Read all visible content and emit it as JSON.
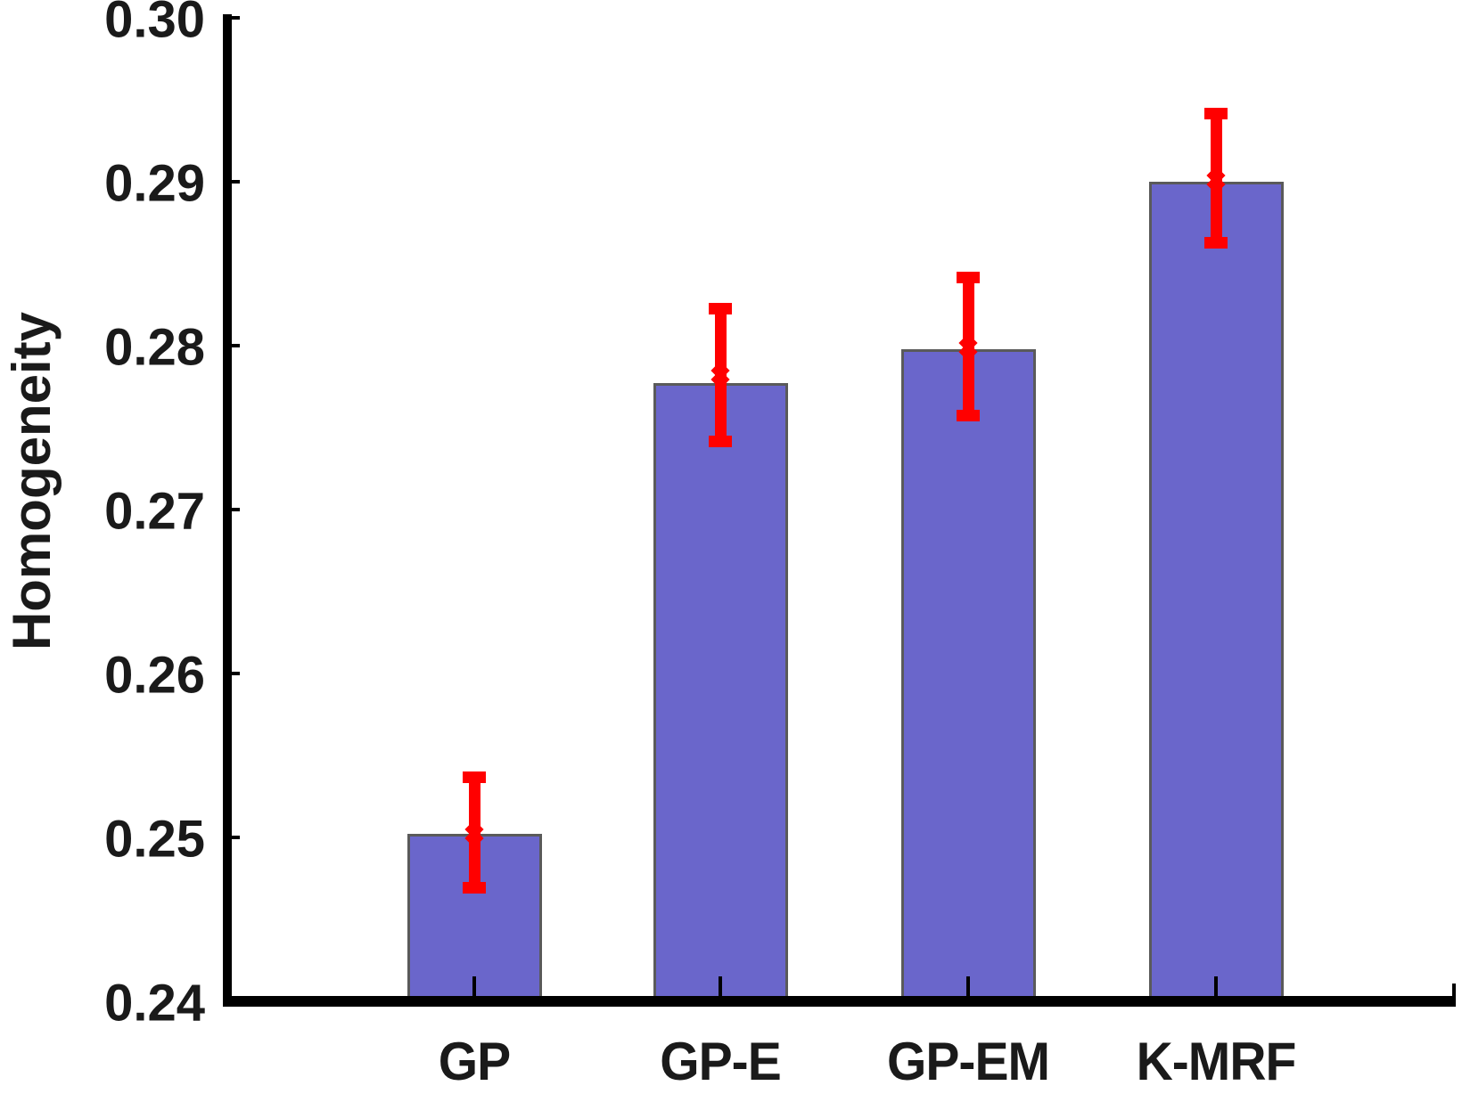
{
  "figure": {
    "background": "#FFFFFF"
  },
  "chart_data": {
    "type": "bar",
    "title": "",
    "ylabel": "Homogeneity",
    "xlabel": "",
    "categories": [
      "GP",
      "GP-E",
      "GP-EM",
      "K-MRF"
    ],
    "series": [
      {
        "name": "Homogeneity",
        "values": [
          0.2502,
          0.2777,
          0.2798,
          0.29
        ],
        "mean_markers": [
          0.2502,
          0.2782,
          0.2799,
          0.2901
        ],
        "error_low": [
          0.2466,
          0.2738,
          0.2754,
          0.2859
        ],
        "error_high": [
          0.254,
          0.2826,
          0.2845,
          0.2945
        ]
      }
    ],
    "ylim": [
      0.24,
      0.3
    ],
    "ytick_step": 0.01,
    "ytick_labels": [
      "0.24",
      "0.25",
      "0.26",
      "0.27",
      "0.28",
      "0.29",
      "0.30"
    ],
    "grid": false,
    "legend": null,
    "colors": {
      "bar_fill": "#6A66CB",
      "bar_edge": "#5A5A5A",
      "error_bar": "#FF0000",
      "axis": "#000000",
      "text": "#1A1A1A"
    }
  }
}
